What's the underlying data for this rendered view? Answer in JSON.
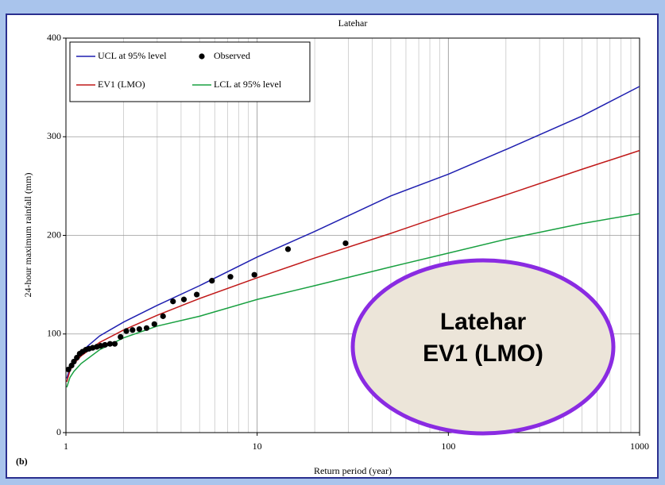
{
  "chart_data": {
    "type": "line",
    "title": "Latehar",
    "xlabel": "Return period (year)",
    "ylabel": "24-hour maximum rainfall (mm)",
    "panel_label": "(b)",
    "xscale": "log",
    "xlim": [
      1,
      1000
    ],
    "xticks": [
      1,
      10,
      100,
      1000
    ],
    "ylim": [
      0,
      400
    ],
    "yticks": [
      0,
      100,
      200,
      300,
      400
    ],
    "grid": true,
    "legend": "upper left",
    "series": [
      {
        "name": "UCL at 95% level",
        "color": "#1f1fb0",
        "kind": "line",
        "x": [
          1.01,
          1.05,
          1.1,
          1.2,
          1.5,
          2,
          3,
          5,
          10,
          20,
          50,
          100,
          200,
          500,
          1000
        ],
        "values": [
          55,
          66,
          73,
          82,
          98,
          112,
          129,
          149,
          178,
          204,
          240,
          262,
          287,
          321,
          351
        ]
      },
      {
        "name": "EV1 (LMO)",
        "color": "#c01818",
        "kind": "line",
        "x": [
          1.01,
          1.05,
          1.1,
          1.2,
          1.5,
          2,
          3,
          5,
          10,
          20,
          50,
          100,
          200,
          500,
          1000
        ],
        "values": [
          51.5,
          63,
          69.7,
          77.8,
          91.4,
          104,
          119,
          136,
          157,
          177,
          202,
          222,
          241,
          267,
          286
        ]
      },
      {
        "name": "LCL at 95% level",
        "color": "#18a040",
        "kind": "line",
        "x": [
          1.01,
          1.05,
          1.1,
          1.2,
          1.5,
          2,
          3,
          5,
          10,
          20,
          50,
          100,
          200,
          500,
          1000
        ],
        "values": [
          46,
          56,
          62,
          70,
          84,
          96,
          108,
          118,
          135,
          149,
          168,
          182,
          196,
          212,
          222
        ]
      },
      {
        "name": "Observed",
        "color": "#000000",
        "kind": "scatter",
        "x": [
          1.03,
          1.07,
          1.1,
          1.14,
          1.18,
          1.22,
          1.27,
          1.32,
          1.38,
          1.45,
          1.52,
          1.6,
          1.7,
          1.8,
          1.93,
          2.07,
          2.23,
          2.42,
          2.64,
          2.9,
          3.22,
          3.63,
          4.14,
          4.83,
          5.8,
          7.25,
          9.67,
          14.5,
          29
        ],
        "values": [
          64,
          68,
          72,
          76,
          80,
          82,
          84,
          85,
          86,
          87,
          88,
          89,
          90,
          90,
          97,
          103,
          104,
          105,
          106,
          110,
          118,
          133,
          135,
          140,
          154,
          158,
          160,
          186,
          192
        ]
      }
    ],
    "legend_order": [
      0,
      3,
      1,
      2
    ],
    "annotations": [
      {
        "text": "Latehar",
        "color": "#b01010"
      },
      {
        "text": "EV1 (LMO)",
        "color": "#1a2fb0"
      }
    ]
  }
}
